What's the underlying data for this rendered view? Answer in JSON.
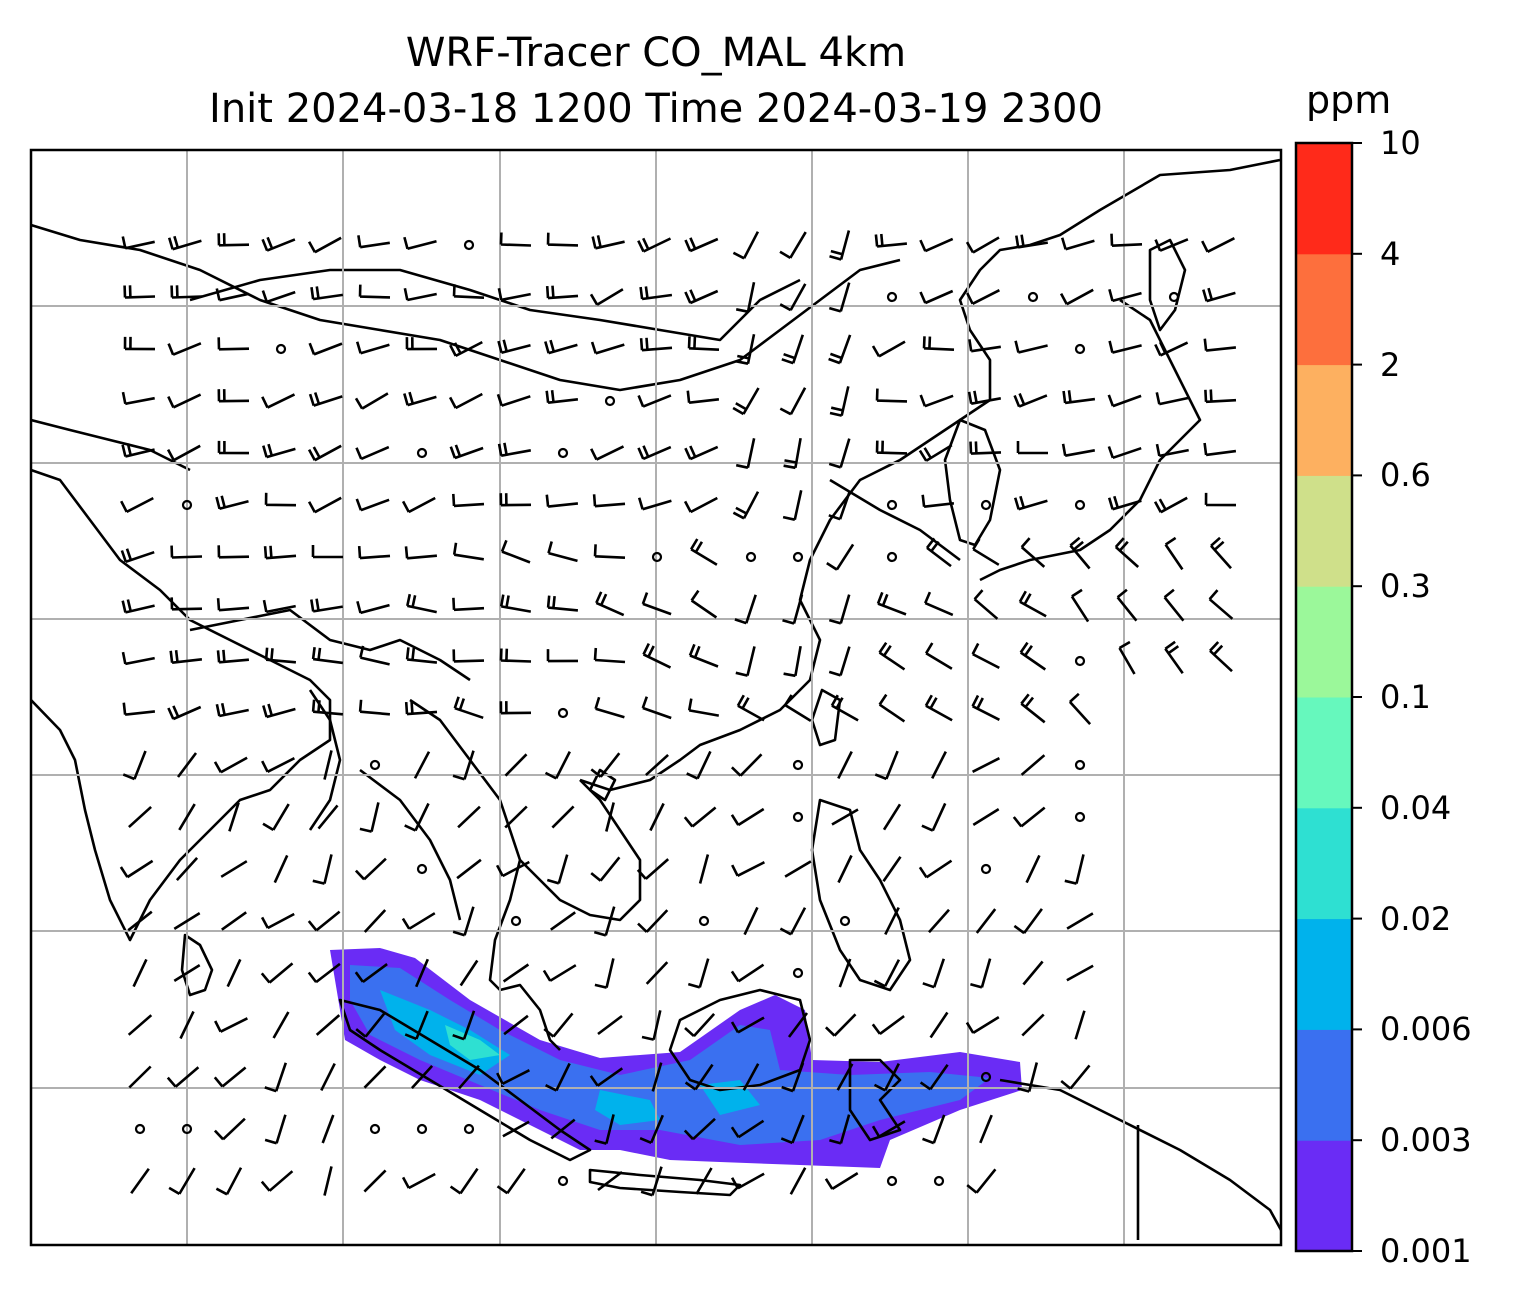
{
  "title_line1": "WRF-Tracer CO_MAL 4km",
  "title_line2": "Init 2024-03-18 1200 Time 2024-03-19 2300",
  "colorbar": {
    "unit": "ppm",
    "ticks": [
      "0.001",
      "0.003",
      "0.006",
      "0.02",
      "0.04",
      "0.1",
      "0.3",
      "0.6",
      "2",
      "4",
      "10"
    ],
    "colors": [
      "#6a2cf5",
      "#3a70f0",
      "#00b2ec",
      "#2ee0d2",
      "#66f8bd",
      "#9bf89a",
      "#cfe08a",
      "#fdb060",
      "#fd6f3d",
      "#ff2a1a"
    ]
  },
  "map": {
    "graticule": "gridlines",
    "coastline_color": "#000000",
    "gridline_color": "#b0b0b0",
    "plume_colors": {
      "low": "#6a2cf5",
      "mid": "#3a70f0",
      "high": "#2ee0d2"
    }
  }
}
